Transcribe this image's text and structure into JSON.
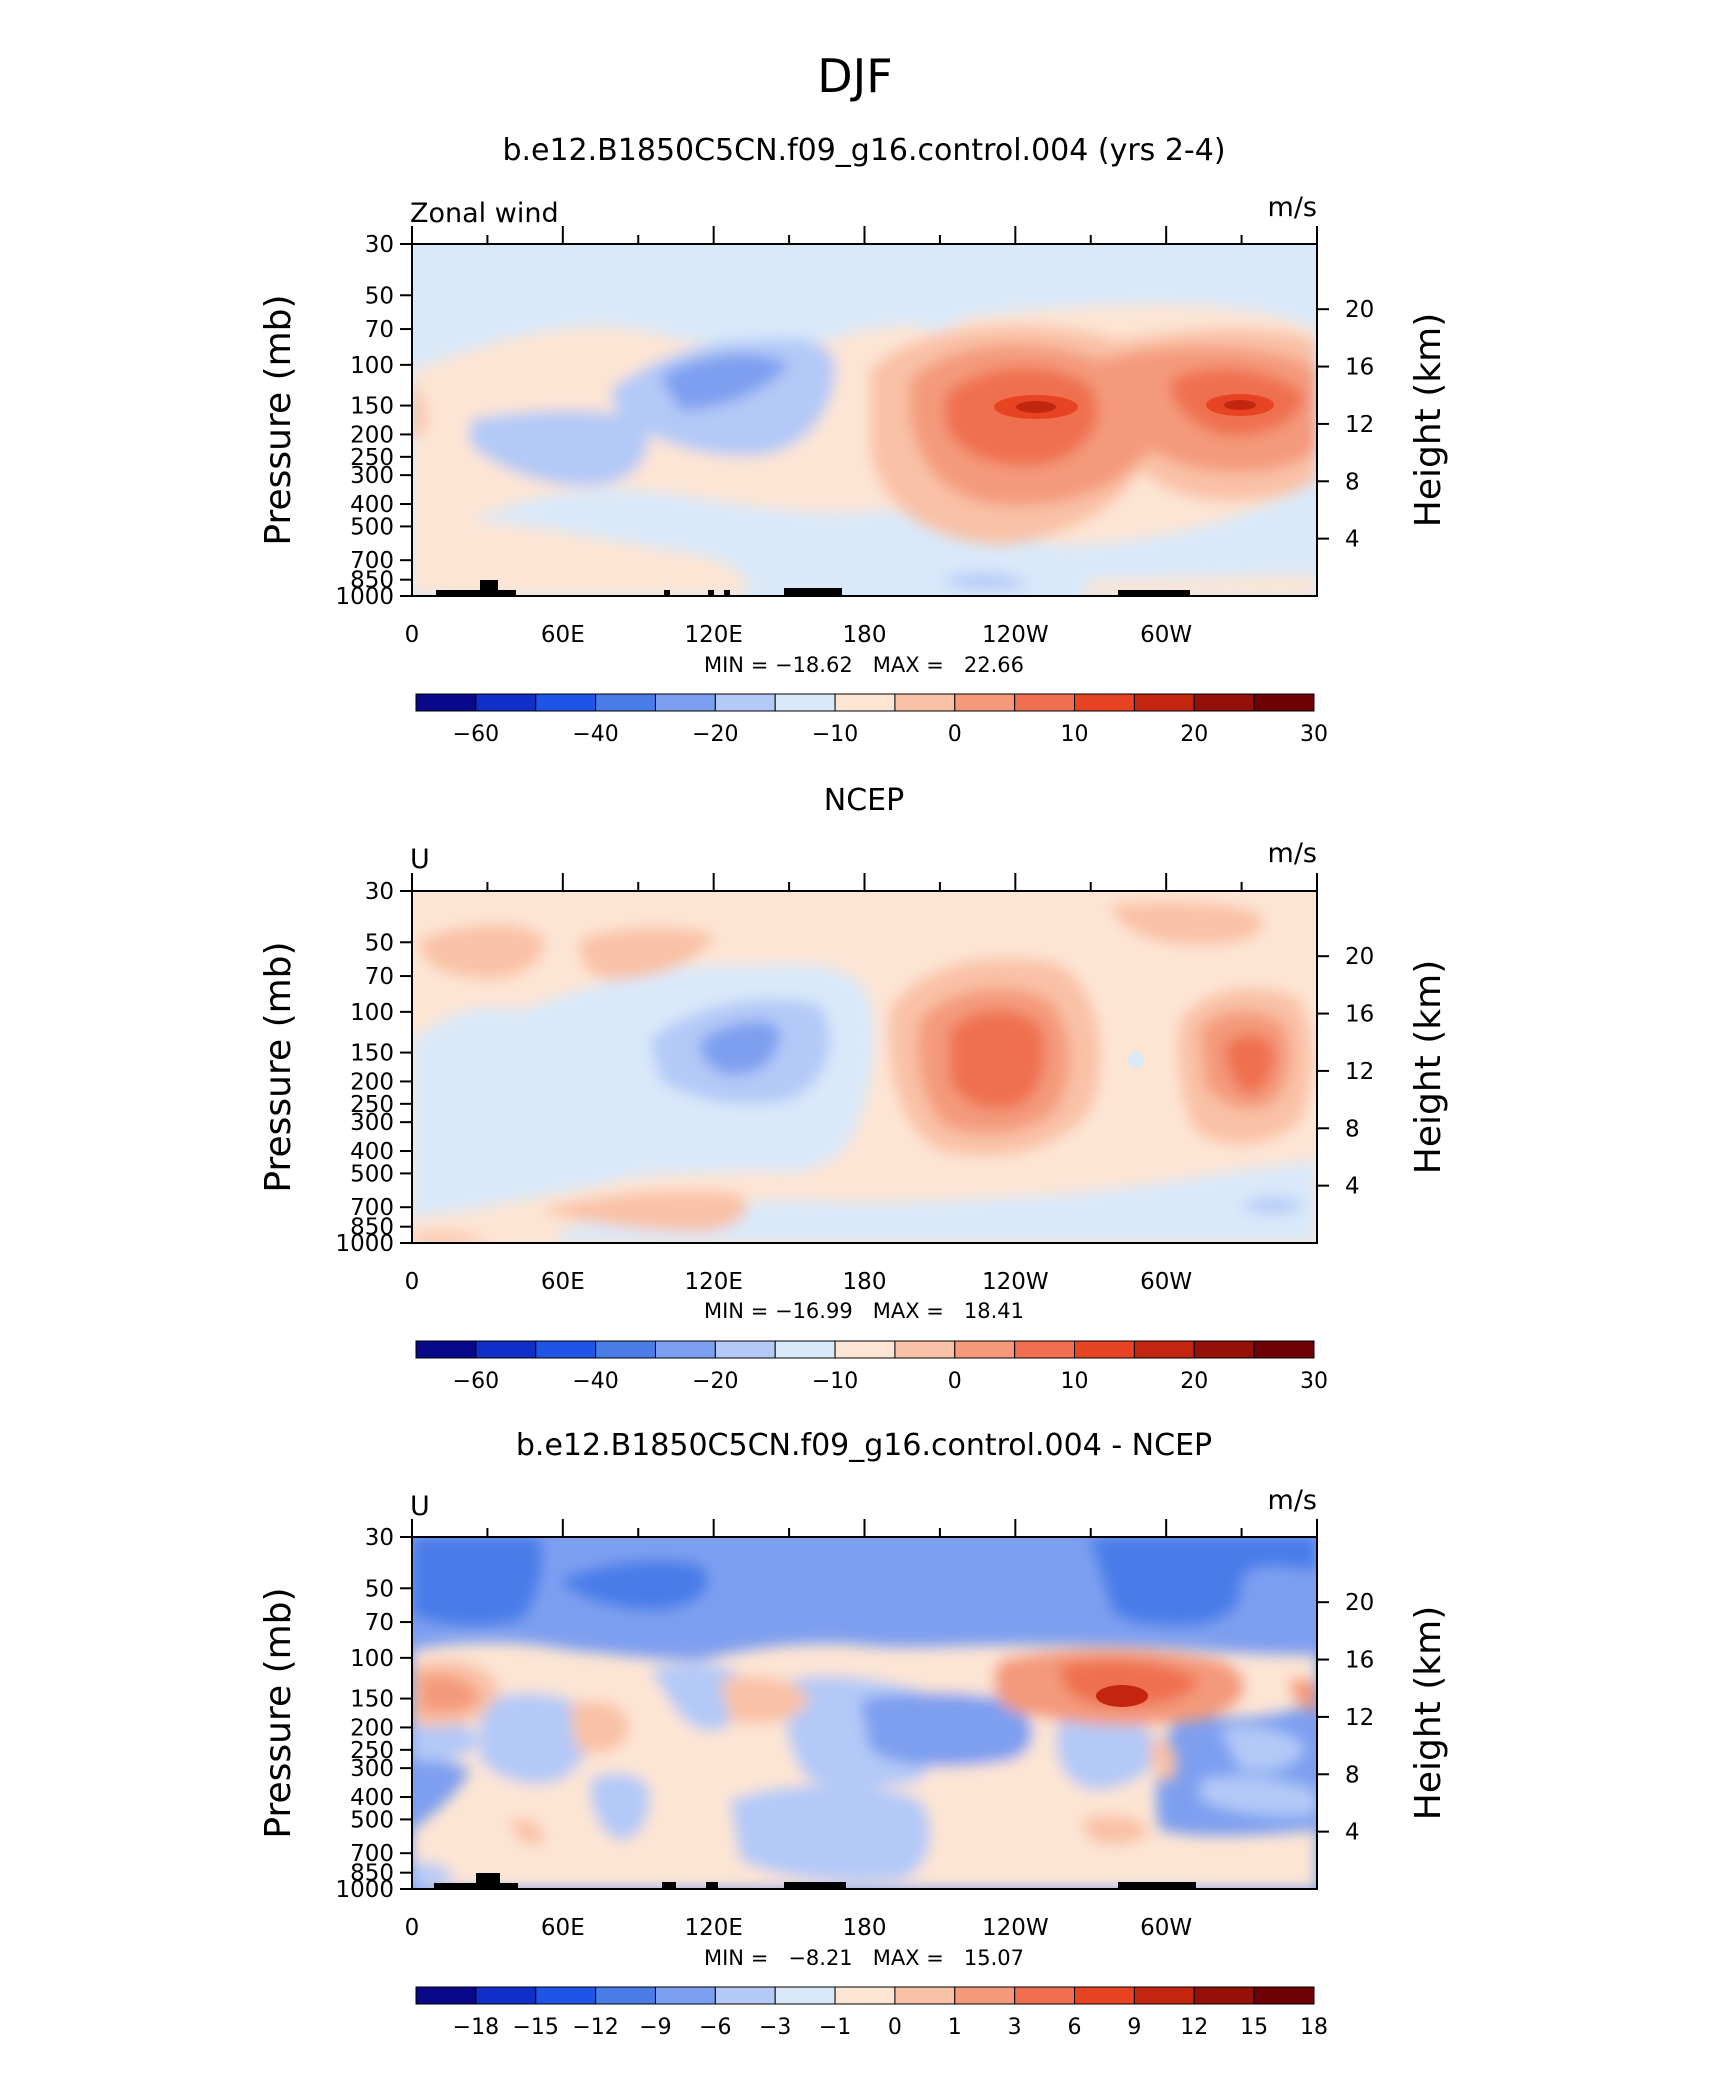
{
  "figure": {
    "title": "DJF"
  },
  "chart_data": [
    {
      "type": "heatmap",
      "title": "b.e12.B1850C5CN.f09_g16.control.004 (yrs 2-4)",
      "left_label": "Zonal wind",
      "units": "m/s",
      "ylabel": "Pressure (mb)",
      "ylabel_right": "Height (km)",
      "x_ticks": [
        "0",
        "60E",
        "120E",
        "180",
        "120W",
        "60W"
      ],
      "y_ticks": [
        "30",
        "50",
        "70",
        "100",
        "150",
        "200",
        "250",
        "300",
        "400",
        "500",
        "700",
        "850",
        "1000"
      ],
      "y_ticks_right": [
        "20",
        "16",
        "12",
        "8",
        "4"
      ],
      "min": -18.62,
      "max": 22.66,
      "stats_text": "MIN = −18.62   MAX =   22.66",
      "colorbar_levels": [
        "−60",
        "−40",
        "−20",
        "−10",
        "0",
        "10",
        "20",
        "30"
      ],
      "colorbar_colors": [
        "#08088a",
        "#0f2fc8",
        "#1f55e6",
        "#4a7ce8",
        "#7d9ff0",
        "#b3c9f7",
        "#d9e9fa",
        "#fde5d4",
        "#f9c1a6",
        "#f49a7b",
        "#ef6f4f",
        "#e84322",
        "#c2260e",
        "#941008",
        "#6e0004"
      ]
    },
    {
      "type": "heatmap",
      "title": "NCEP",
      "left_label": "U",
      "units": "m/s",
      "ylabel": "Pressure (mb)",
      "ylabel_right": "Height (km)",
      "x_ticks": [
        "0",
        "60E",
        "120E",
        "180",
        "120W",
        "60W"
      ],
      "y_ticks": [
        "30",
        "50",
        "70",
        "100",
        "150",
        "200",
        "250",
        "300",
        "400",
        "500",
        "700",
        "850",
        "1000"
      ],
      "y_ticks_right": [
        "20",
        "16",
        "12",
        "8",
        "4"
      ],
      "min": -16.99,
      "max": 18.41,
      "stats_text": "MIN = −16.99   MAX =   18.41",
      "colorbar_levels": [
        "−60",
        "−40",
        "−20",
        "−10",
        "0",
        "10",
        "20",
        "30"
      ],
      "colorbar_colors": [
        "#08088a",
        "#0f2fc8",
        "#1f55e6",
        "#4a7ce8",
        "#7d9ff0",
        "#b3c9f7",
        "#d9e9fa",
        "#fde5d4",
        "#f9c1a6",
        "#f49a7b",
        "#ef6f4f",
        "#e84322",
        "#c2260e",
        "#941008",
        "#6e0004"
      ]
    },
    {
      "type": "heatmap",
      "title": "b.e12.B1850C5CN.f09_g16.control.004 - NCEP",
      "left_label": "U",
      "units": "m/s",
      "ylabel": "Pressure (mb)",
      "ylabel_right": "Height (km)",
      "x_ticks": [
        "0",
        "60E",
        "120E",
        "180",
        "120W",
        "60W"
      ],
      "y_ticks": [
        "30",
        "50",
        "70",
        "100",
        "150",
        "200",
        "250",
        "300",
        "400",
        "500",
        "700",
        "850",
        "1000"
      ],
      "y_ticks_right": [
        "20",
        "16",
        "12",
        "8",
        "4"
      ],
      "min": -8.21,
      "max": 15.07,
      "stats_text": "MIN =   −8.21   MAX =   15.07",
      "colorbar_levels": [
        "−18",
        "−15",
        "−12",
        "−9",
        "−6",
        "−3",
        "−1",
        "0",
        "1",
        "3",
        "6",
        "9",
        "12",
        "15",
        "18"
      ],
      "colorbar_colors": [
        "#08088a",
        "#0f2fc8",
        "#1f55e6",
        "#4a7ce8",
        "#7d9ff0",
        "#b3c9f7",
        "#d9e9fa",
        "#fde5d4",
        "#f9c1a6",
        "#f49a7b",
        "#ef6f4f",
        "#e84322",
        "#c2260e",
        "#941008",
        "#6e0004"
      ]
    }
  ]
}
